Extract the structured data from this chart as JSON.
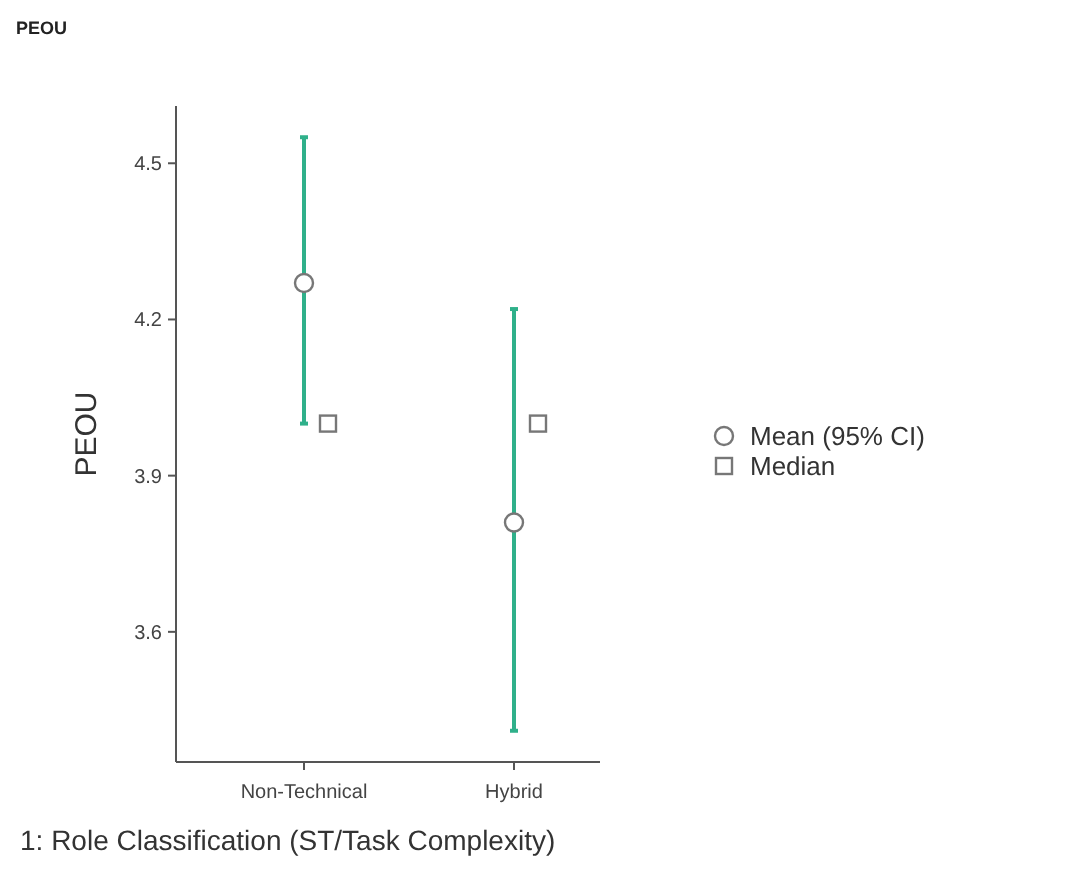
{
  "chart_data": {
    "type": "scatter",
    "title": "PEOU",
    "xlabel": "1: Role Classification (ST/Task Complexity)",
    "ylabel": "PEOU",
    "categories": [
      "Non-Technical",
      "Hybrid"
    ],
    "series": [
      {
        "name": "Mean (95% CI)",
        "color": "#ffffff",
        "marker": "circle",
        "values": [
          4.27,
          3.81
        ],
        "errors": [
          [
            4.0,
            4.55
          ],
          [
            3.41,
            4.22
          ]
        ]
      },
      {
        "name": "Median",
        "color": "#ffffff",
        "marker": "square",
        "values": [
          4.0,
          4.0
        ]
      }
    ],
    "ylim": [
      3.35,
      4.61
    ],
    "yticks": [
      3.6,
      3.9,
      4.2,
      4.5
    ],
    "grid": false,
    "legend": "right"
  }
}
